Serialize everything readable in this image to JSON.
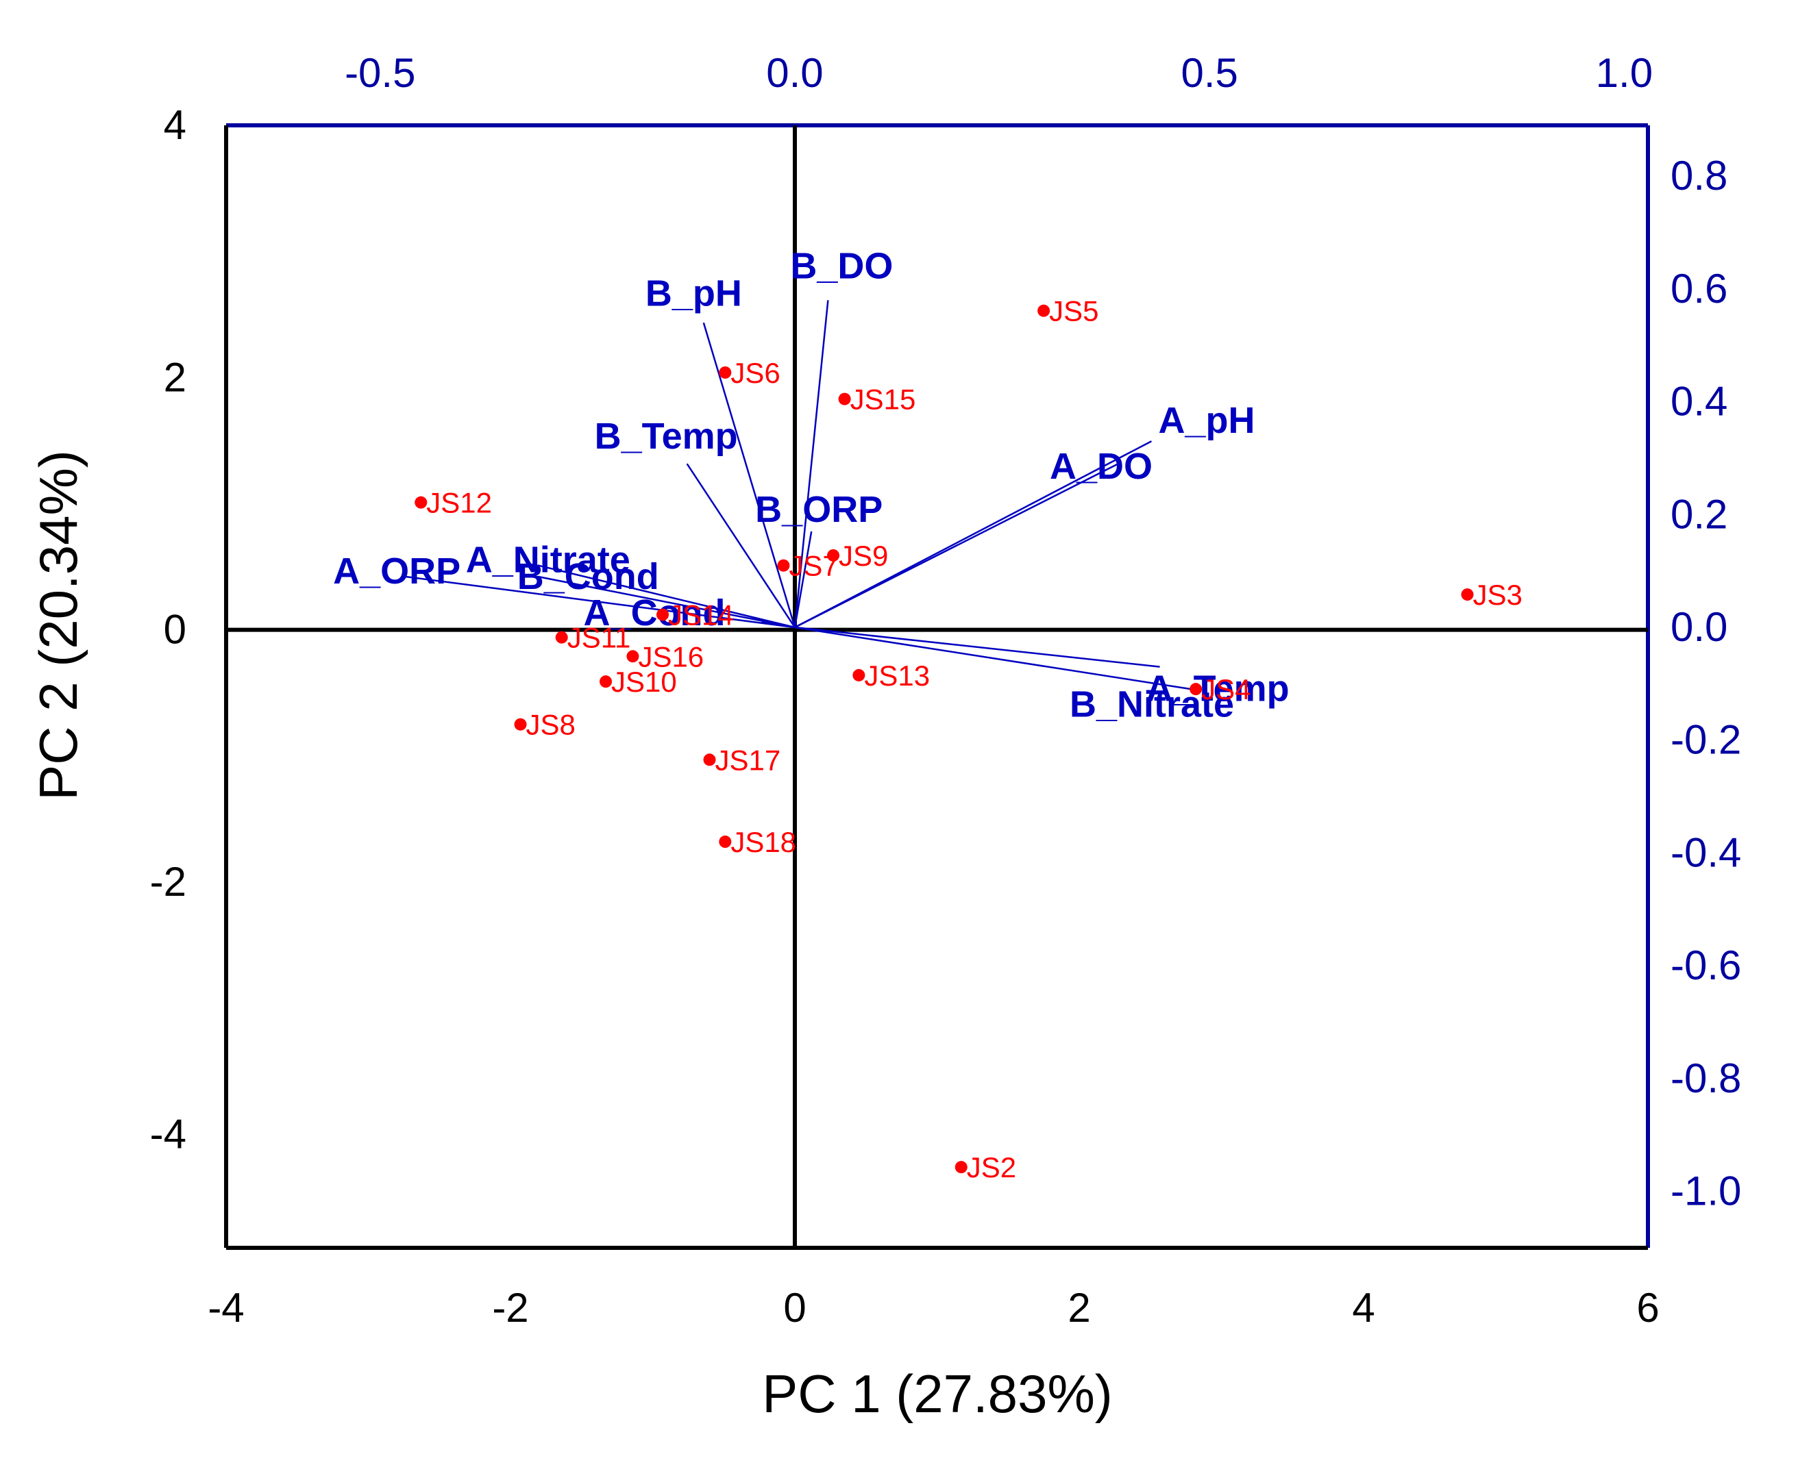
{
  "chart_data": {
    "type": "scatter",
    "subtype": "pca-biplot",
    "xlabel": "PC 1 (27.83%)",
    "ylabel": "PC 2 (20.34%)",
    "score_axes": {
      "xlim": [
        -4,
        6
      ],
      "ylim": [
        -4.9,
        4
      ],
      "xticks": [
        "-4",
        "-2",
        "0",
        "2",
        "4",
        "6"
      ],
      "yticks": [
        "4",
        "2",
        "0",
        "-2",
        "-4"
      ]
    },
    "loading_axes": {
      "xlim": [
        -0.6857,
        1.0286
      ],
      "ylim": [
        -1.1,
        0.89
      ],
      "xticks": [
        "-0.5",
        "0.0",
        "0.5",
        "1.0"
      ],
      "yticks": [
        "0.8",
        "0.6",
        "0.4",
        "0.2",
        "0.0",
        "-0.2",
        "-0.4",
        "-0.6",
        "-0.8",
        "-1.0"
      ]
    },
    "observations": [
      {
        "label": "JS2",
        "x": 1.17,
        "y": -4.26
      },
      {
        "label": "JS3",
        "x": 4.73,
        "y": 0.28
      },
      {
        "label": "JS4",
        "x": 2.82,
        "y": -0.47
      },
      {
        "label": "JS5",
        "x": 1.75,
        "y": 2.53
      },
      {
        "label": "JS6",
        "x": -0.49,
        "y": 2.04
      },
      {
        "label": "JS7",
        "x": -0.08,
        "y": 0.51
      },
      {
        "label": "JS8",
        "x": -1.93,
        "y": -0.75
      },
      {
        "label": "JS9",
        "x": 0.27,
        "y": 0.59
      },
      {
        "label": "JS10",
        "x": -1.33,
        "y": -0.41
      },
      {
        "label": "JS11",
        "x": -1.64,
        "y": -0.06
      },
      {
        "label": "JS12",
        "x": -2.63,
        "y": 1.01
      },
      {
        "label": "JS13",
        "x": 0.45,
        "y": -0.36
      },
      {
        "label": "JS14",
        "x": -0.93,
        "y": 0.12
      },
      {
        "label": "JS15",
        "x": 0.35,
        "y": 1.83
      },
      {
        "label": "JS16",
        "x": -1.14,
        "y": -0.21
      },
      {
        "label": "JS17",
        "x": -0.6,
        "y": -1.03
      },
      {
        "label": "JS18",
        "x": -0.49,
        "y": -1.68
      }
    ],
    "loadings": [
      {
        "label": "A_pH",
        "x": 0.43,
        "y": 0.33
      },
      {
        "label": "A_DO",
        "x": 0.39,
        "y": 0.29
      },
      {
        "label": "A_Temp",
        "x": 0.44,
        "y": -0.07
      },
      {
        "label": "B_Nitrate",
        "x": 0.48,
        "y": -0.11
      },
      {
        "label": "B_DO",
        "x": 0.04,
        "y": 0.58
      },
      {
        "label": "B_pH",
        "x": -0.11,
        "y": 0.54
      },
      {
        "label": "B_Temp",
        "x": -0.13,
        "y": 0.29
      },
      {
        "label": "B_ORP",
        "x": 0.02,
        "y": 0.17
      },
      {
        "label": "A_Nitrate",
        "x": -0.31,
        "y": 0.11
      },
      {
        "label": "A_ORP",
        "x": -0.47,
        "y": 0.09
      },
      {
        "label": "B_Cond",
        "x": -0.31,
        "y": 0.09
      },
      {
        "label": "A_Cond",
        "x": -0.04,
        "y": 0.01
      }
    ]
  },
  "colors": {
    "observation": "#ff0000",
    "loading": "#0000c0",
    "frame": "#000000",
    "secondary_frame": "#0000a0"
  }
}
